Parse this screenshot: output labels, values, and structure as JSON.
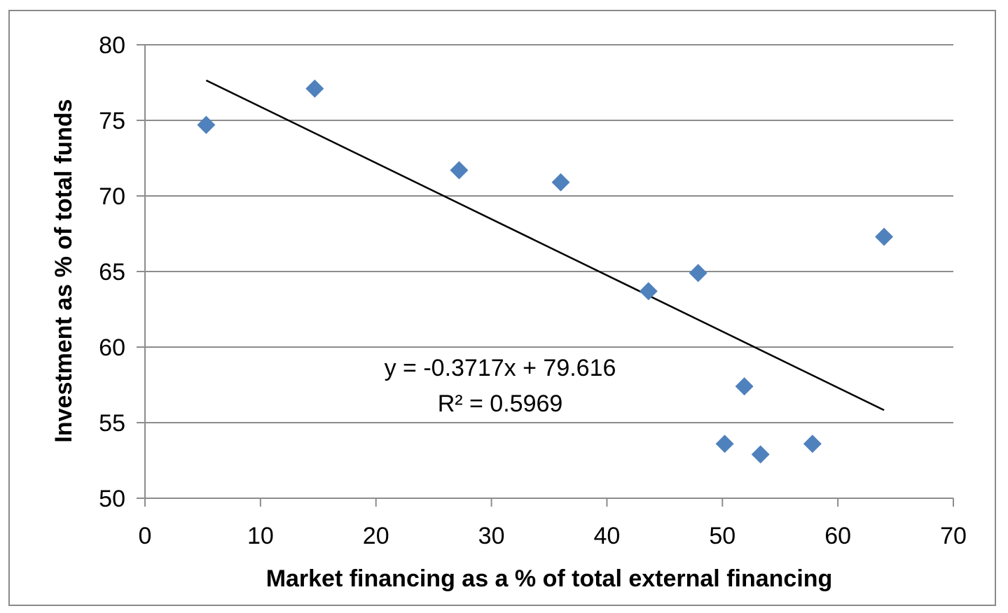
{
  "chart_data": {
    "type": "scatter",
    "title": "",
    "xlabel": "Market financing as a % of total external financing",
    "ylabel": "Investment as % of total  funds",
    "xlim": [
      0,
      70
    ],
    "ylim": [
      50,
      80
    ],
    "x_ticks": [
      0,
      10,
      20,
      30,
      40,
      50,
      60,
      70
    ],
    "y_ticks": [
      50,
      55,
      60,
      65,
      70,
      75,
      80
    ],
    "grid": "horizontal",
    "marker": "diamond",
    "colors": {
      "marker": "#4f81bd",
      "trendline": "#000000",
      "gridline": "#8c8c8c"
    },
    "points": [
      {
        "x": 5.3,
        "y": 74.7
      },
      {
        "x": 14.7,
        "y": 77.1
      },
      {
        "x": 27.2,
        "y": 71.7
      },
      {
        "x": 36.0,
        "y": 70.9
      },
      {
        "x": 43.6,
        "y": 63.7
      },
      {
        "x": 47.9,
        "y": 64.9
      },
      {
        "x": 50.2,
        "y": 53.6
      },
      {
        "x": 51.9,
        "y": 57.4
      },
      {
        "x": 53.3,
        "y": 52.9
      },
      {
        "x": 57.8,
        "y": 53.6
      },
      {
        "x": 64.0,
        "y": 67.3
      }
    ],
    "trendline": {
      "slope": -0.3717,
      "intercept": 79.616,
      "x_range": [
        5.3,
        64.0
      ],
      "equation_label": "y = -0.3717x + 79.616",
      "r2_label": "R² = 0.5969"
    }
  }
}
